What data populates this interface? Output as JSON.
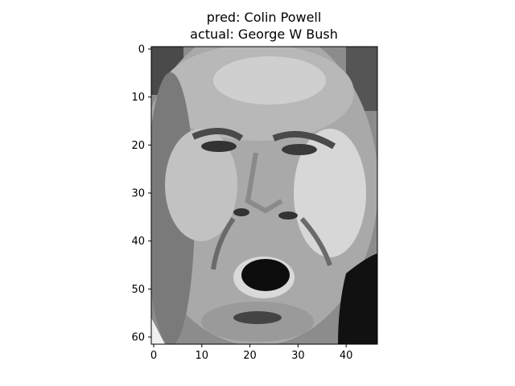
{
  "chart_data": {
    "type": "heatmap",
    "title_lines": [
      "pred: Colin Powell",
      "actual: George W Bush"
    ],
    "xlabel": "",
    "ylabel": "",
    "colormap": "gray",
    "image_shape": [
      62,
      47
    ],
    "xlim": [
      -0.5,
      46.5
    ],
    "ylim": [
      61.5,
      -0.5
    ],
    "x_ticks": [
      0,
      10,
      20,
      30,
      40
    ],
    "y_ticks": [
      0,
      10,
      20,
      30,
      40,
      50,
      60
    ],
    "grid": false
  }
}
